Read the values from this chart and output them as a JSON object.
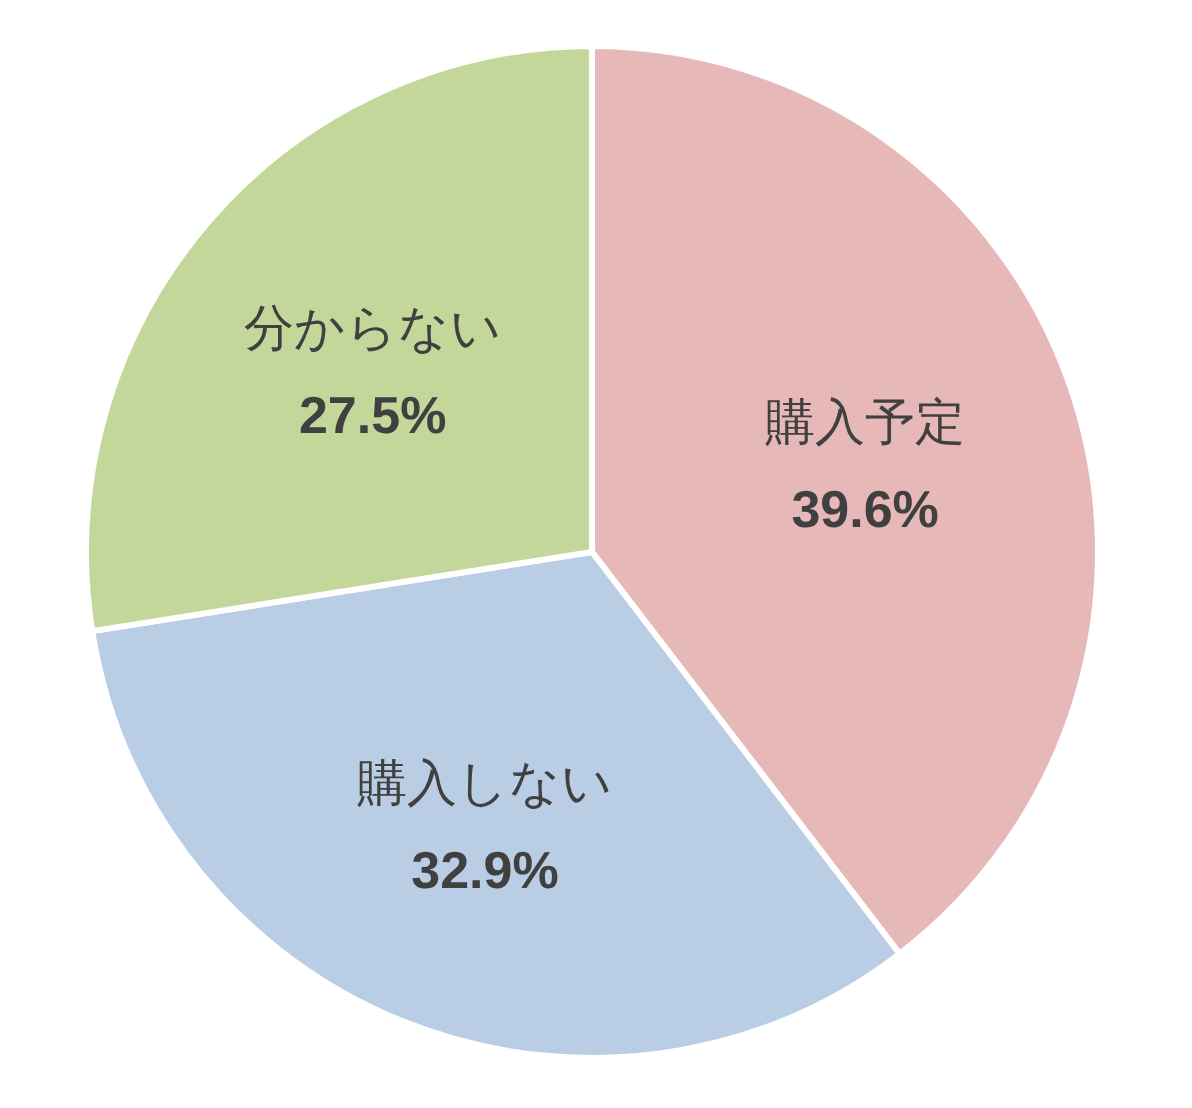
{
  "chart_data": {
    "type": "pie",
    "categories": [
      "購入予定",
      "購入しない",
      "分からない"
    ],
    "values": [
      39.6,
      32.9,
      27.5
    ],
    "value_labels": [
      "39.6%",
      "32.9%",
      "27.5%"
    ],
    "colors": [
      "#e6b8b7",
      "#b9cde5",
      "#c4d79b"
    ]
  }
}
